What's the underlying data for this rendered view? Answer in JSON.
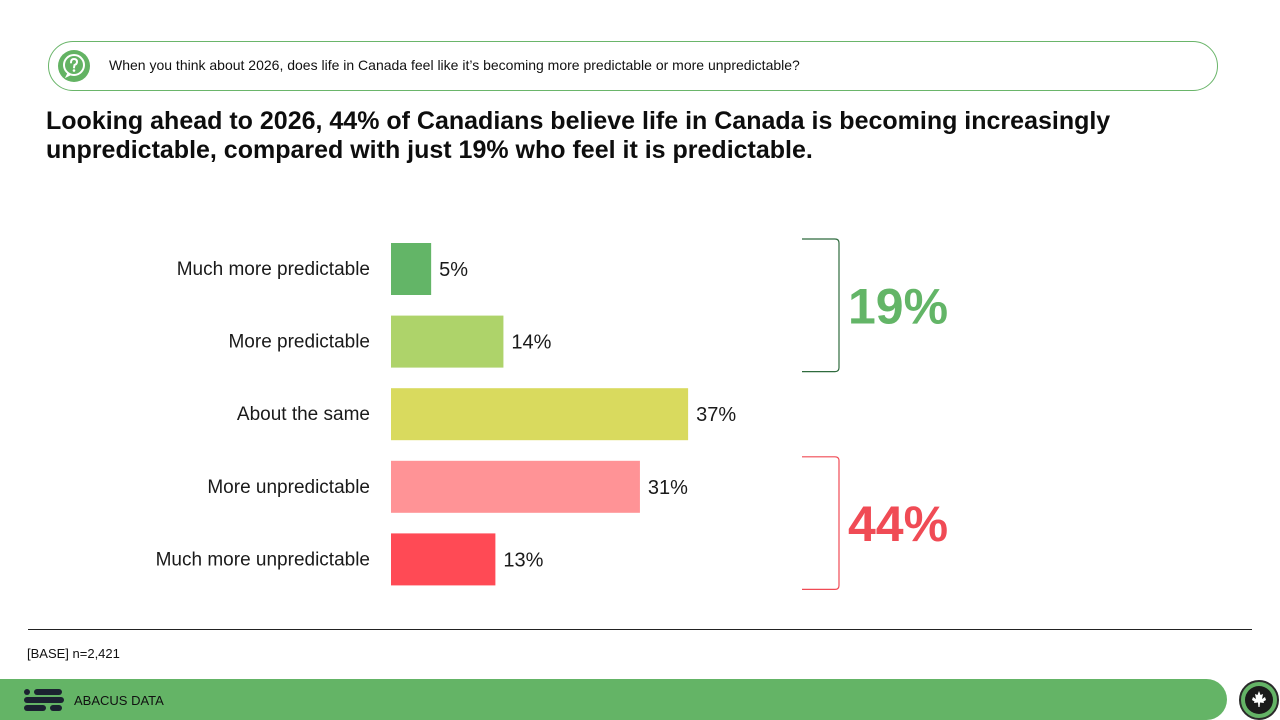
{
  "question": {
    "icon": "question-icon",
    "text": "When you think about 2026, does life in Canada feel like it’s becoming more predictable or more unpredictable?"
  },
  "headline": "Looking ahead to 2026, 44% of Canadians believe life in Canada is becoming increasingly unpredictable, compared with just 19% who feel it is predictable.",
  "chart_data": {
    "type": "bar",
    "orientation": "horizontal",
    "title": "",
    "xlabel": "",
    "ylabel": "",
    "xlim": [
      0,
      100
    ],
    "grid": false,
    "categories": [
      "Much more predictable",
      "More predictable",
      "About the same",
      "More unpredictable",
      "Much more unpredictable"
    ],
    "values": [
      5,
      14,
      37,
      31,
      13
    ],
    "value_labels": [
      "5%",
      "14%",
      "37%",
      "31%",
      "13%"
    ],
    "colors": [
      "#63b567",
      "#aed36a",
      "#d9da5e",
      "#ff9396",
      "#ff4a55"
    ],
    "groups": [
      {
        "name": "predictable",
        "members": [
          0,
          1
        ],
        "total_label": "19%",
        "color": "#63b567",
        "bracket_color": "#2f6b3e"
      },
      {
        "name": "unpredictable",
        "members": [
          3,
          4
        ],
        "total_label": "44%",
        "color": "#f04b55",
        "bracket_color": "#f04b55"
      }
    ]
  },
  "footer": {
    "base_note": "[BASE] n=2,421",
    "brand": "ABACUS DATA",
    "logo_icon": "abacus-logo-icon",
    "badge_icon": "maple-leaf-icon",
    "bar_color": "#64b466"
  }
}
